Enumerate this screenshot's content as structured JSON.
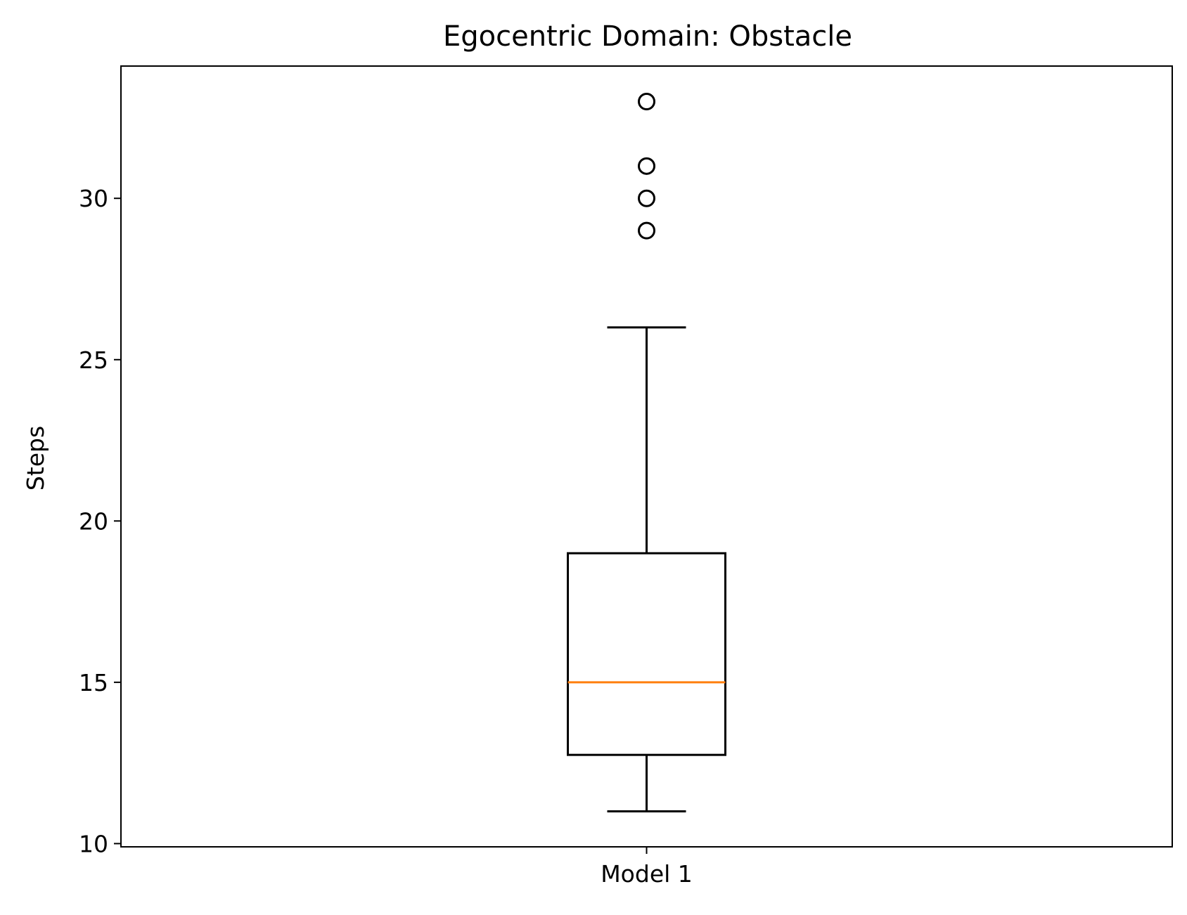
{
  "chart_data": {
    "type": "box",
    "title": "Egocentric Domain: Obstacle",
    "xlabel": "",
    "ylabel": "Steps",
    "ylim": [
      9.9,
      34.1
    ],
    "yticks": [
      10,
      15,
      20,
      25,
      30
    ],
    "ytick_labels": [
      "10",
      "15",
      "20",
      "25",
      "30"
    ],
    "categories": [
      "Model 1"
    ],
    "boxes": [
      {
        "category": "Model 1",
        "whisker_low": 11,
        "q1": 12.75,
        "median": 15,
        "q3": 19,
        "whisker_high": 26,
        "outliers": [
          29,
          30,
          31,
          33
        ]
      }
    ],
    "grid": false,
    "colors": {
      "box": "#000000",
      "median": "#ff7f0e",
      "outlier_edge": "#000000"
    }
  }
}
